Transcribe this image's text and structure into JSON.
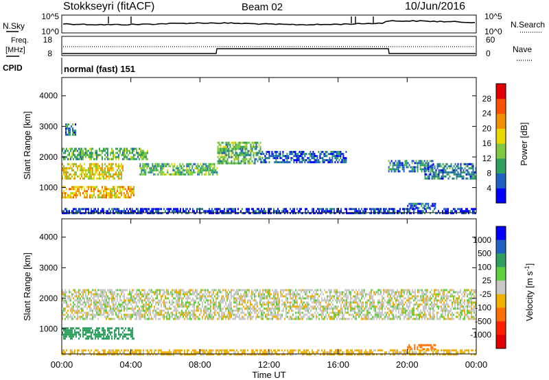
{
  "header": {
    "station": "Stokkseyri (fitACF)",
    "beam": "Beam 02",
    "date": "10/Jun/2016"
  },
  "noise_panel": {
    "left_label": "N.Sky",
    "right_label": "N.Search",
    "left_ticks": [
      "10^5",
      "10^0"
    ],
    "right_ticks": [
      "10^5",
      "10^0"
    ]
  },
  "freq_panel": {
    "left_label_line1": "Freq.",
    "left_label_line2": "[MHz]",
    "left_ticks": [
      "18",
      "8"
    ],
    "right_label": "Nave",
    "right_ticks": [
      "60",
      "0"
    ]
  },
  "cpid": {
    "label": "CPID",
    "value": "normal (fast) 151"
  },
  "x_axis": {
    "label": "Time UT",
    "ticks": [
      "00:00",
      "04:00",
      "08:00",
      "12:00",
      "16:00",
      "20:00",
      "00:00"
    ]
  },
  "chart_data": [
    {
      "type": "heatmap",
      "title": "",
      "xlabel": "Time UT",
      "ylabel": "Slant Range [km]",
      "xlim": [
        0,
        24
      ],
      "ylim": [
        180,
        4600
      ],
      "yticks": [
        "1000",
        "2000",
        "3000",
        "4000"
      ],
      "colorbar_label": "Power [dB]",
      "colorbar_ticks": [
        "4",
        "8",
        "12",
        "16",
        "20",
        "24",
        "28"
      ],
      "colorbar_colors": [
        "#0000ff",
        "#2060c0",
        "#30a060",
        "#80c840",
        "#e8d800",
        "#f09000",
        "#ff5000",
        "#e00000"
      ],
      "regions": [
        {
          "t0": 0.0,
          "t1": 4.2,
          "r0": 650,
          "r1": 1050,
          "value": 20
        },
        {
          "t0": 0.0,
          "t1": 3.5,
          "r0": 1300,
          "r1": 1800,
          "value": 18
        },
        {
          "t0": 0.0,
          "t1": 5.0,
          "r0": 1900,
          "r1": 2300,
          "value": 12
        },
        {
          "t0": 0.2,
          "t1": 0.8,
          "r0": 2700,
          "r1": 3100,
          "value": 8
        },
        {
          "t0": 4.5,
          "t1": 9.0,
          "r0": 1400,
          "r1": 1800,
          "value": 12
        },
        {
          "t0": 9.0,
          "t1": 11.5,
          "r0": 1800,
          "r1": 2500,
          "value": 12
        },
        {
          "t0": 11.5,
          "t1": 16.5,
          "r0": 1800,
          "r1": 2200,
          "value": 6
        },
        {
          "t0": 18.9,
          "t1": 21.5,
          "r0": 1500,
          "r1": 1900,
          "value": 8
        },
        {
          "t0": 21.0,
          "t1": 24.0,
          "r0": 1300,
          "r1": 1800,
          "value": 8
        },
        {
          "t0": 20.0,
          "t1": 21.6,
          "r0": 300,
          "r1": 500,
          "value": 6
        },
        {
          "t0": 0.0,
          "t1": 24.0,
          "r0": 180,
          "r1": 330,
          "value": 4
        }
      ]
    },
    {
      "type": "heatmap",
      "title": "",
      "xlabel": "Time UT",
      "ylabel": "Slant Range [km]",
      "xlim": [
        0,
        24
      ],
      "ylim": [
        180,
        4600
      ],
      "yticks": [
        "1000",
        "2000",
        "3000",
        "4000"
      ],
      "colorbar_label": "Velocity [m s^-1]",
      "colorbar_ticks": [
        "1000",
        "500",
        "100",
        "25",
        "-25",
        "-100",
        "-500",
        "-1000"
      ],
      "colorbar_colors": [
        "#0000ff",
        "#2060c0",
        "#30a060",
        "#60d040",
        "#c8c8c8",
        "#f0b000",
        "#ff7000",
        "#ff2000",
        "#e00000"
      ],
      "regions": [
        {
          "t0": 0.0,
          "t1": 4.2,
          "r0": 650,
          "r1": 1050,
          "value": 200
        },
        {
          "t0": 0.0,
          "t1": 24.0,
          "r0": 1300,
          "r1": 2300,
          "value": 0
        },
        {
          "t0": 20.0,
          "t1": 21.6,
          "r0": 300,
          "r1": 500,
          "value": -300
        },
        {
          "t0": 0.0,
          "t1": 24.0,
          "r0": 180,
          "r1": 330,
          "value": -50
        }
      ]
    }
  ]
}
